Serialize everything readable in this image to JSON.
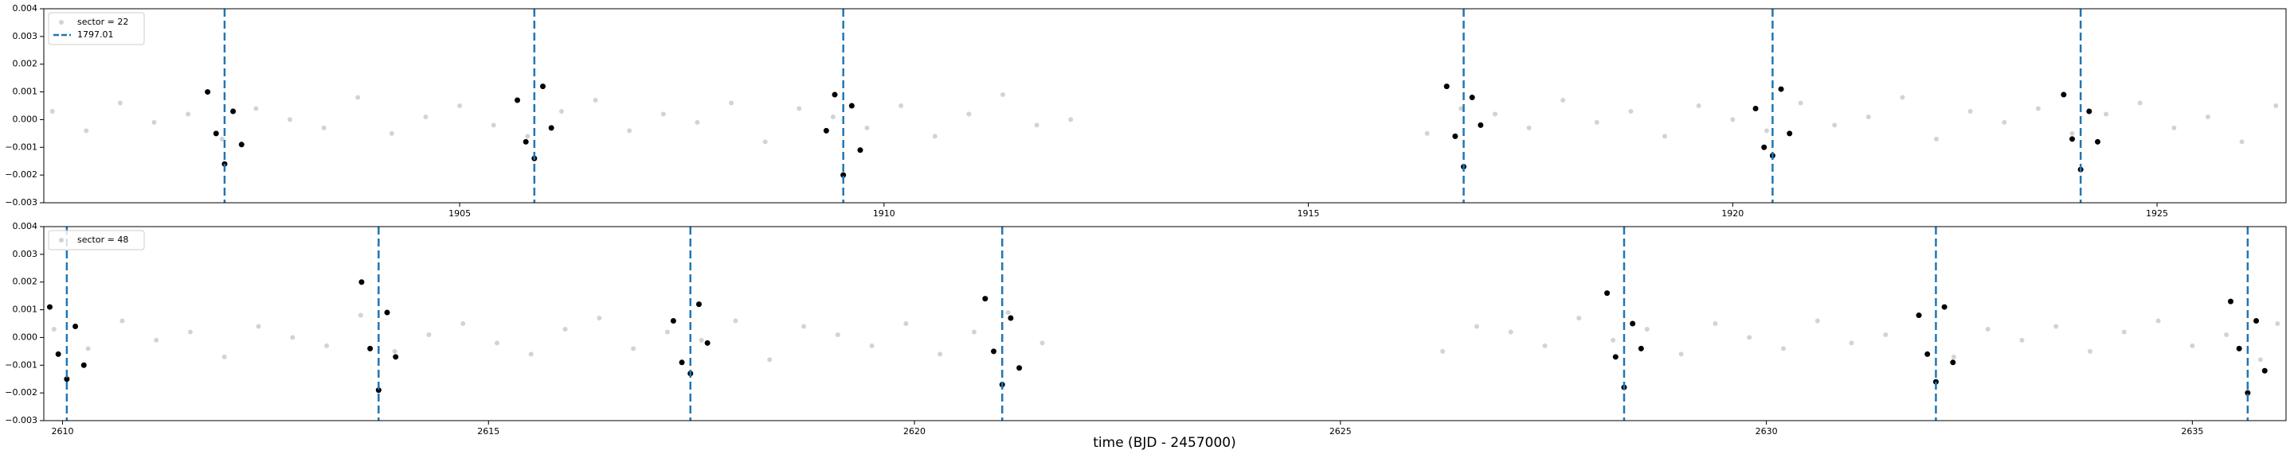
{
  "chart_data": [
    {
      "type": "scatter",
      "legend": "upper left",
      "grid": false,
      "xlim": [
        1900.1,
        1926.52
      ],
      "ylim": [
        -0.003,
        0.004
      ],
      "xticks": [
        1905,
        1910,
        1915,
        1920,
        1925
      ],
      "yticks": [
        {
          "value": -0.003,
          "label": "−0.003"
        },
        {
          "value": -0.002,
          "label": "−0.002"
        },
        {
          "value": -0.001,
          "label": "−0.001"
        },
        {
          "value": 0,
          "label": "0.000"
        },
        0.001,
        0.002,
        0.003,
        0.004
      ],
      "series": [
        {
          "name": "sector = 22",
          "color": "#d3d3d3",
          "x": [
            1900.2,
            1900.6,
            1901.0,
            1901.4,
            1901.8,
            1902.2,
            1902.6,
            1903.0,
            1903.4,
            1903.8,
            1904.2,
            1904.6,
            1905.0,
            1905.4,
            1905.8,
            1906.2,
            1906.6,
            1907.0,
            1907.4,
            1907.8,
            1908.2,
            1908.6,
            1909.0,
            1909.4,
            1909.8,
            1910.2,
            1910.6,
            1911.0,
            1911.4,
            1911.8,
            1912.2,
            1916.4,
            1916.8,
            1917.2,
            1917.6,
            1918.0,
            1918.4,
            1918.8,
            1919.2,
            1919.6,
            1920.0,
            1920.4,
            1920.8,
            1921.2,
            1921.6,
            1922.0,
            1922.4,
            1922.8,
            1923.2,
            1923.6,
            1924.0,
            1924.4,
            1924.8,
            1925.2,
            1925.6,
            1926.0,
            1926.4
          ],
          "values": [
            0.0003,
            -0.0004,
            0.0006,
            -0.0001,
            0.0002,
            -0.0007,
            0.0004,
            0,
            -0.0003,
            0.0008,
            -0.0005,
            0.0001,
            0.0005,
            -0.0002,
            -0.0006,
            0.0003,
            0.0007,
            -0.0004,
            0.0002,
            -0.0001,
            0.0006,
            -0.0008,
            0.0004,
            0.0001,
            -0.0003,
            0.0005,
            -0.0006,
            0.0002,
            0.0009,
            -0.0002,
            0,
            -0.0005,
            0.0004,
            0.0002,
            -0.0003,
            0.0007,
            -0.0001,
            0.0003,
            -0.0006,
            0.0005,
            0,
            -0.0004,
            0.0006,
            -0.0002,
            0.0001,
            0.0008,
            -0.0007,
            0.0003,
            -0.0001,
            0.0004,
            -0.0005,
            0.0002,
            0.0006,
            -0.0003,
            0.0001,
            -0.0008,
            0.0005
          ]
        },
        {
          "color": "#000000",
          "x": [
            1902.03,
            1902.13,
            1902.23,
            1902.33,
            1902.43,
            1905.68,
            1905.78,
            1905.88,
            1905.98,
            1906.08,
            1909.32,
            1909.42,
            1909.52,
            1909.62,
            1909.72,
            1916.63,
            1916.73,
            1916.83,
            1916.93,
            1917.03,
            1920.27,
            1920.37,
            1920.47,
            1920.57,
            1920.67,
            1923.9,
            1924.0,
            1924.1,
            1924.2,
            1924.3
          ],
          "values": [
            0.001,
            -0.0005,
            -0.0016,
            0.0003,
            -0.0009,
            0.0007,
            -0.0008,
            -0.0014,
            0.0012,
            -0.0003,
            -0.0004,
            0.0009,
            -0.002,
            0.0005,
            -0.0011,
            0.0012,
            -0.0006,
            -0.0017,
            0.0008,
            -0.0002,
            0.0004,
            -0.001,
            -0.0013,
            0.0011,
            -0.0005,
            0.0009,
            -0.0007,
            -0.0018,
            0.0003,
            -0.0008
          ]
        }
      ],
      "vlines": {
        "name": "1797.01",
        "color": "#1f77b4",
        "x": [
          1902.23,
          1905.88,
          1909.52,
          1916.83,
          1920.47,
          1924.1
        ]
      }
    },
    {
      "type": "scatter",
      "legend": "upper left",
      "grid": false,
      "xlabel": "time (BJD - 2457000)",
      "xlim": [
        2609.78,
        2636.1
      ],
      "ylim": [
        -0.003,
        0.004
      ],
      "xticks": [
        2610,
        2615,
        2620,
        2625,
        2630,
        2635
      ],
      "yticks": [
        {
          "value": -0.003,
          "label": "−0.003"
        },
        {
          "value": -0.002,
          "label": "−0.002"
        },
        {
          "value": -0.001,
          "label": "−0.001"
        },
        {
          "value": 0,
          "label": "0.000"
        },
        0.001,
        0.002,
        0.003,
        0.004
      ],
      "series": [
        {
          "name": "sector = 48",
          "color": "#d3d3d3",
          "x": [
            2609.9,
            2610.3,
            2610.7,
            2611.1,
            2611.5,
            2611.9,
            2612.3,
            2612.7,
            2613.1,
            2613.5,
            2613.9,
            2614.3,
            2614.7,
            2615.1,
            2615.5,
            2615.9,
            2616.3,
            2616.7,
            2617.1,
            2617.5,
            2617.9,
            2618.3,
            2618.7,
            2619.1,
            2619.5,
            2619.9,
            2620.3,
            2620.7,
            2621.1,
            2621.5,
            2626.2,
            2626.6,
            2627.0,
            2627.4,
            2627.8,
            2628.2,
            2628.6,
            2629.0,
            2629.4,
            2629.8,
            2630.2,
            2630.6,
            2631.0,
            2631.4,
            2631.8,
            2632.2,
            2632.6,
            2633.0,
            2633.4,
            2633.8,
            2634.2,
            2634.6,
            2635.0,
            2635.4,
            2635.8,
            2636.0
          ],
          "values": [
            0.0003,
            -0.0004,
            0.0006,
            -0.0001,
            0.0002,
            -0.0007,
            0.0004,
            0,
            -0.0003,
            0.0008,
            -0.0005,
            0.0001,
            0.0005,
            -0.0002,
            -0.0006,
            0.0003,
            0.0007,
            -0.0004,
            0.0002,
            -0.0001,
            0.0006,
            -0.0008,
            0.0004,
            0.0001,
            -0.0003,
            0.0005,
            -0.0006,
            0.0002,
            0.0009,
            -0.0002,
            -0.0005,
            0.0004,
            0.0002,
            -0.0003,
            0.0007,
            -0.0001,
            0.0003,
            -0.0006,
            0.0005,
            0,
            -0.0004,
            0.0006,
            -0.0002,
            0.0001,
            0.0008,
            -0.0007,
            0.0003,
            -0.0001,
            0.0004,
            -0.0005,
            0.0002,
            0.0006,
            -0.0003,
            0.0001,
            -0.0008,
            0.0005
          ]
        },
        {
          "color": "#000000",
          "x": [
            2609.85,
            2609.95,
            2610.05,
            2610.15,
            2610.25,
            2613.51,
            2613.61,
            2613.71,
            2613.81,
            2613.91,
            2617.17,
            2617.27,
            2617.37,
            2617.47,
            2617.57,
            2620.83,
            2620.93,
            2621.03,
            2621.13,
            2621.23,
            2628.13,
            2628.23,
            2628.33,
            2628.43,
            2628.53,
            2631.79,
            2631.89,
            2631.99,
            2632.09,
            2632.19,
            2635.45,
            2635.55,
            2635.65,
            2635.75,
            2635.85
          ],
          "values": [
            0.0011,
            -0.0006,
            -0.0015,
            0.0004,
            -0.001,
            0.002,
            -0.0004,
            -0.0019,
            0.0009,
            -0.0007,
            0.0006,
            -0.0009,
            -0.0013,
            0.0012,
            -0.0002,
            0.0014,
            -0.0005,
            -0.0017,
            0.0007,
            -0.0011,
            0.0016,
            -0.0007,
            -0.0018,
            0.0005,
            -0.0004,
            0.0008,
            -0.0006,
            -0.0016,
            0.0011,
            -0.0009,
            0.0013,
            -0.0004,
            -0.002,
            0.0006,
            -0.0012
          ]
        }
      ],
      "vlines": {
        "color": "#1f77b4",
        "x": [
          2610.05,
          2613.71,
          2617.37,
          2621.03,
          2628.33,
          2631.99,
          2635.65
        ]
      }
    }
  ]
}
